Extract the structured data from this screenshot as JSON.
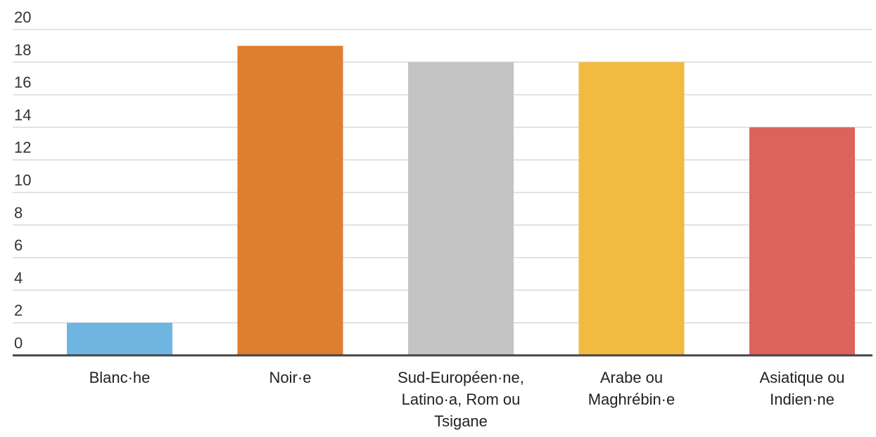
{
  "chart_data": {
    "type": "bar",
    "categories": [
      [
        "Blanc·he"
      ],
      [
        "Noir·e"
      ],
      [
        "Sud-Européen·ne,",
        "Latino·a, Rom ou",
        "Tsigane"
      ],
      [
        "Arabe ou",
        "Maghrébin·e"
      ],
      [
        "Asiatique ou",
        "Indien·ne"
      ]
    ],
    "values": [
      2,
      19,
      18,
      18,
      14
    ],
    "colors": [
      "#6fb5e2",
      "#de7e2f",
      "#c4c4c4",
      "#f0bb40",
      "#dc635c"
    ],
    "yticks": [
      "0",
      "2",
      "4",
      "6",
      "8",
      "10",
      "12",
      "14",
      "16",
      "18",
      "20"
    ],
    "ylim": [
      0,
      20
    ],
    "grid": true,
    "title": "",
    "xlabel": "",
    "ylabel": ""
  }
}
